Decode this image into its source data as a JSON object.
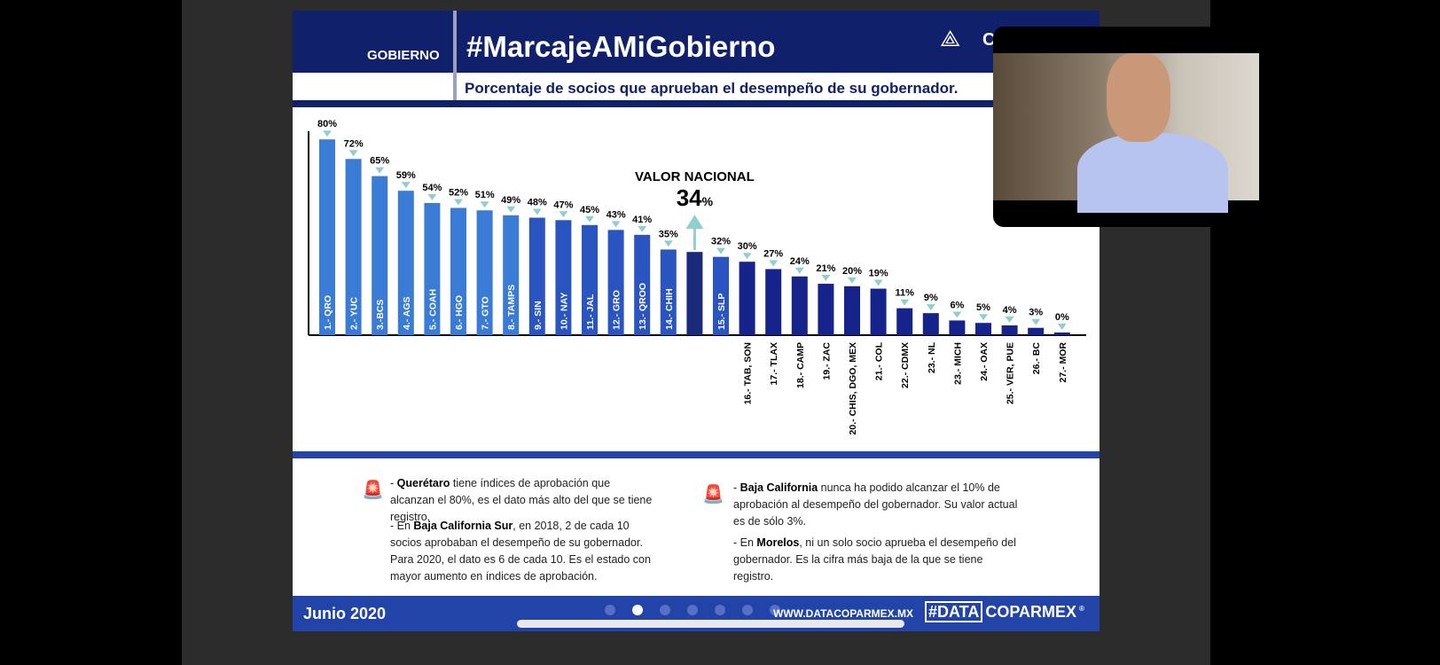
{
  "header": {
    "section": "GOBIERNO",
    "hashtag": "#MarcajeAMiGobierno",
    "subtitle": "Porcentaje de socios que aprueban el desempeño de su gobernador.",
    "logo_text": "C"
  },
  "chart_data": {
    "type": "bar",
    "title": "Porcentaje de socios que aprueban el desempeño de su gobernador.",
    "categories": [
      "1.- QRO",
      "2.- YUC",
      "3.-BCS",
      "4.- AGS",
      "5.- COAH",
      "6.- HGO",
      "7.- GTO",
      "8.- TAMPS",
      "9.- SIN",
      "10.- NAY",
      "11.- JAL",
      "12.- GRO",
      "13.- QROO",
      "14.- CHIH",
      "VALOR NACIONAL",
      "15.- SLP",
      "16.- TAB, SON",
      "17.- TLAX",
      "18.- CAMP",
      "19.- ZAC",
      "20.- CHIS, DGO, MEX",
      "21.- COL",
      "22.- CDMX",
      "23.- NL",
      "23.- MICH",
      "24.- OAX",
      "25.- VER, PUE",
      "26.- BC",
      "27.- MOR"
    ],
    "values": [
      80,
      72,
      65,
      59,
      54,
      52,
      51,
      49,
      48,
      47,
      45,
      43,
      41,
      35,
      34,
      32,
      30,
      27,
      24,
      21,
      20,
      19,
      11,
      9,
      6,
      5,
      4,
      3,
      0
    ],
    "value_labels": [
      "80%",
      "72%",
      "65%",
      "59%",
      "54%",
      "52%",
      "51%",
      "49%",
      "48%",
      "47%",
      "45%",
      "43%",
      "41%",
      "35%",
      "",
      "32%",
      "30%",
      "27%",
      "24%",
      "21%",
      "20%",
      "19%",
      "11%",
      "9%",
      "6%",
      "5%",
      "4%",
      "3%",
      "0%"
    ],
    "national": {
      "label": "VALOR NACIONAL",
      "value": "34",
      "unit": "%"
    },
    "ylim": [
      0,
      80
    ],
    "colors": {
      "top": "#3a7bd5",
      "mid": "#2a55c0",
      "low": "#16238a",
      "national": "#1a2a7a",
      "marker": "#8fd0cc"
    }
  },
  "notes": {
    "left": [
      {
        "bold": "Querétaro",
        "pre": "- ",
        "text": " tiene índices de aprobación que alcanzan el 80%, es el dato más alto del que se tiene registro."
      },
      {
        "pre": "- En ",
        "bold": "Baja California Sur",
        "text": ", en 2018, 2 de cada 10 socios aprobaban el desempeño de su gobernador. Para 2020, el dato es 6 de cada 10. Es el estado con mayor aumento en índices de aprobación."
      }
    ],
    "right": [
      {
        "pre": "- ",
        "bold": "Baja California",
        "text": " nunca ha podido alcanzar el 10% de aprobación al desempeño del gobernador. Su valor actual es de sólo 3%."
      },
      {
        "pre": "- En ",
        "bold": "Morelos",
        "text": ", ni un solo socio aprueba el desempeño del gobernador. Es la cifra más baja de la que se tiene registro."
      }
    ]
  },
  "footer": {
    "date": "Junio 2020",
    "website": "WWW.DATACOPARMEX.MX",
    "brand_box": "#DATA",
    "brand": "COPARMEX",
    "registered": "®",
    "slides": 7,
    "current_slide": 2
  }
}
